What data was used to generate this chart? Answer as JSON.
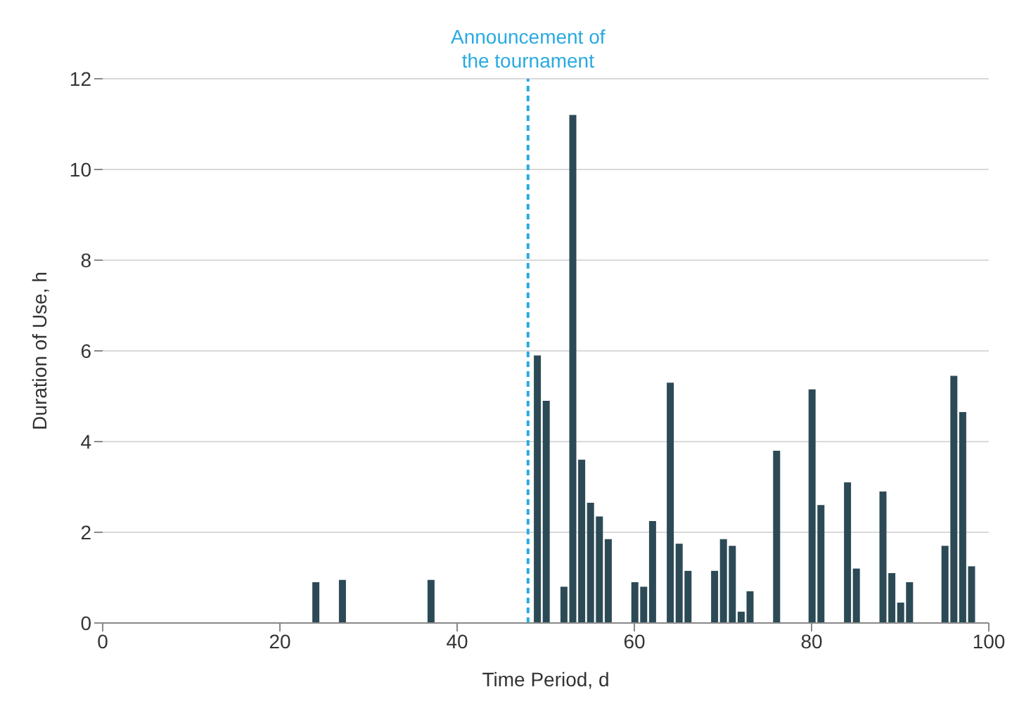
{
  "chart_data": {
    "type": "bar",
    "xlabel": "Time Period, d",
    "ylabel": "Duration of Use, h",
    "x": [
      24,
      27,
      37,
      49,
      50,
      52,
      53,
      54,
      55,
      56,
      57,
      60,
      61,
      62,
      64,
      65,
      66,
      69,
      70,
      71,
      72,
      73,
      76,
      80,
      81,
      84,
      85,
      88,
      89,
      90,
      91,
      95,
      96,
      97,
      98
    ],
    "values": [
      0.9,
      0.95,
      0.95,
      5.9,
      4.9,
      0.8,
      11.2,
      3.6,
      2.65,
      2.35,
      1.85,
      0.9,
      0.8,
      2.25,
      5.3,
      1.75,
      1.15,
      1.15,
      1.85,
      1.7,
      0.25,
      0.7,
      3.8,
      5.15,
      2.6,
      3.1,
      1.2,
      2.9,
      1.1,
      0.45,
      0.9,
      1.7,
      5.45,
      4.65,
      1.25
    ],
    "color": "#2c4a56",
    "xlim": [
      0,
      100
    ],
    "xticks": [
      0,
      20,
      40,
      60,
      80,
      100
    ],
    "ylim": [
      0,
      12
    ],
    "yticks": [
      0,
      2,
      4,
      6,
      8,
      10,
      12
    ],
    "grid": "y",
    "ref_lines": [
      {
        "axis": "x",
        "value": 48,
        "label": "Announcement of the tournament",
        "color": "#29aae1",
        "line_style": "dashed"
      }
    ]
  }
}
